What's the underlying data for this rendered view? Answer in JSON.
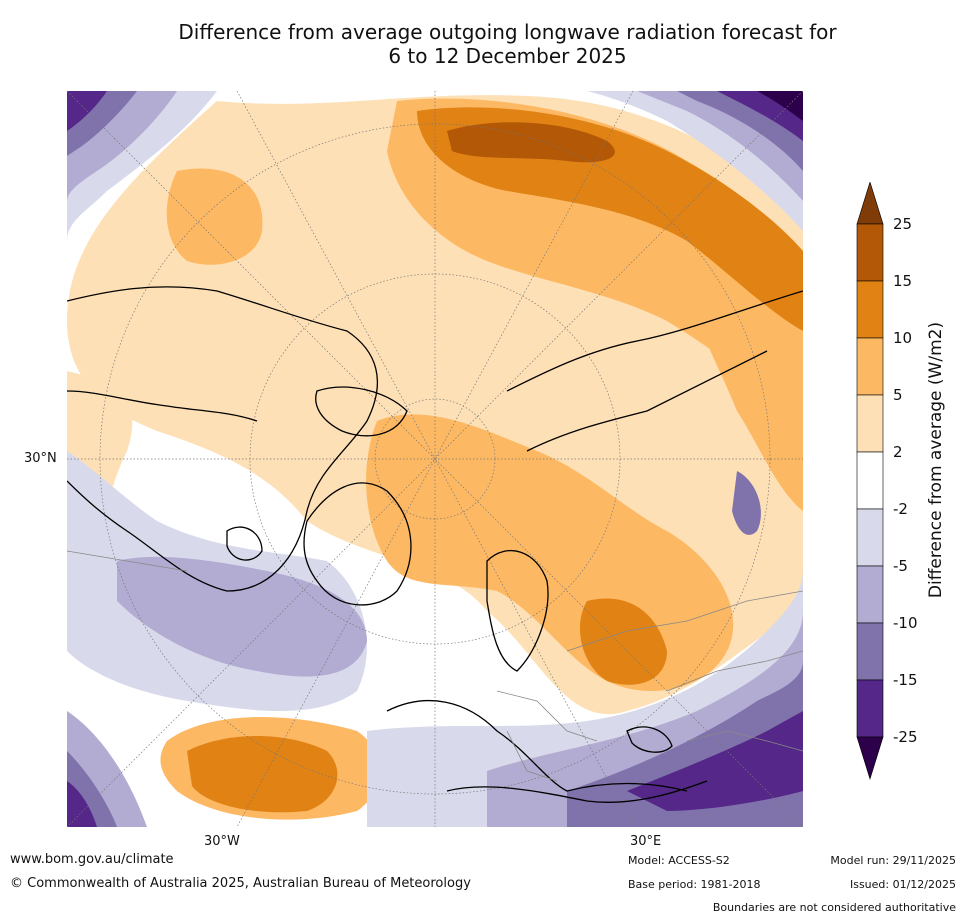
{
  "title": {
    "line1": "Difference from average outgoing longwave radiation forecast for",
    "line2": "6 to 12 December 2025"
  },
  "map": {
    "projection": "north-polar-stereographic",
    "labels": {
      "lat_30n": "30°N",
      "lon_30w": "30°W",
      "lon_30e": "30°E"
    },
    "colors": {
      "c_neg25_below": "#2d004b",
      "c_neg25_15": "#542788",
      "c_neg15_10": "#8073ac",
      "c_neg10_5": "#b2abd2",
      "c_neg5_2": "#d8daeb",
      "c_neg2_2": "#ffffff",
      "c_2_5": "#fee0b6",
      "c_5_10": "#fdb863",
      "c_10_15": "#e08214",
      "c_15_25": "#b35806",
      "c_25_above": "#7f3b08"
    }
  },
  "colorbar": {
    "title": "Difference from average (W/m2)",
    "ticks": [
      "25",
      "15",
      "10",
      "5",
      "2",
      "-2",
      "-5",
      "-10",
      "-15",
      "-25"
    ],
    "bins": [
      {
        "range": ">25",
        "color": "#7f3b08"
      },
      {
        "range": "15 to 25",
        "color": "#b35806"
      },
      {
        "range": "10 to 15",
        "color": "#e08214"
      },
      {
        "range": "5 to 10",
        "color": "#fdb863"
      },
      {
        "range": "2 to 5",
        "color": "#fee0b6"
      },
      {
        "range": "-2 to 2",
        "color": "#ffffff"
      },
      {
        "range": "-5 to -2",
        "color": "#d8daeb"
      },
      {
        "range": "-10 to -5",
        "color": "#b2abd2"
      },
      {
        "range": "-15 to -10",
        "color": "#8073ac"
      },
      {
        "range": "-25 to -15",
        "color": "#542788"
      },
      {
        "range": "<-25",
        "color": "#2d004b"
      }
    ]
  },
  "footer": {
    "website": "www.bom.gov.au/climate",
    "copyright": "© Commonwealth of Australia 2025, Australian Bureau of Meteorology",
    "model": "Model: ACCESS-S2",
    "base_period": "Base period: 1981-2018",
    "model_run": "Model run: 29/11/2025",
    "issued": "Issued: 01/12/2025",
    "disclaimer": "Boundaries are not considered authoritative"
  }
}
